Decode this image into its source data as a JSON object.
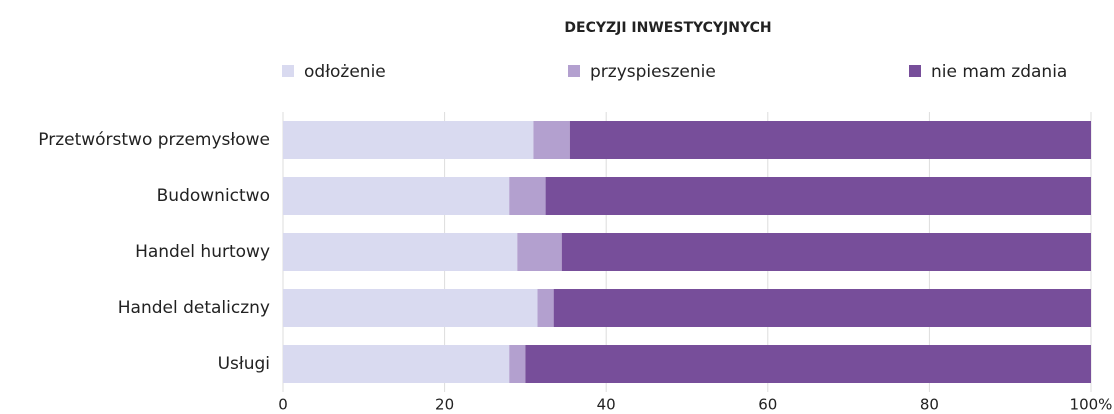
{
  "chart_data": {
    "type": "stacked_barh",
    "title": "DECYZJI INWESTYCYJNYCH",
    "categories": [
      "Przetwórstwo przemysłowe",
      "Budownictwo",
      "Handel hurtowy",
      "Handel detaliczny",
      "Usługi"
    ],
    "series": [
      {
        "name": "odłożenie",
        "color": "#d9daf0",
        "values": [
          31,
          28,
          29,
          31.5,
          28
        ]
      },
      {
        "name": "przyspieszenie",
        "color": "#b3a0cf",
        "values": [
          4.5,
          4.5,
          5.5,
          2,
          2
        ]
      },
      {
        "name": "nie mam zdania",
        "color": "#774e9a",
        "values": [
          64.5,
          67.5,
          65.5,
          66.5,
          70
        ]
      }
    ],
    "xlim": [
      0,
      100
    ],
    "xticks": [
      0,
      20,
      40,
      60,
      80,
      {
        "value": 100,
        "label": "100%"
      }
    ],
    "grid": true
  }
}
